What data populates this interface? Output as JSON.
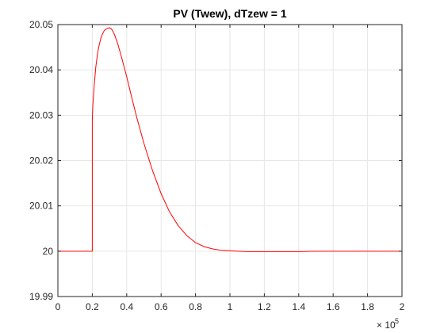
{
  "chart_data": {
    "type": "line",
    "title": "PV (Twew), dTzew = 1",
    "xlabel": "",
    "ylabel": "",
    "xlim": [
      0,
      2
    ],
    "ylim": [
      19.99,
      20.05
    ],
    "x_exponent_label": "× 10",
    "x_exponent_power": "5",
    "xticks": [
      "0",
      "0.2",
      "0.4",
      "0.6",
      "0.8",
      "1",
      "1.2",
      "1.4",
      "1.6",
      "1.8",
      "2"
    ],
    "yticks": [
      "19.99",
      "20",
      "20.01",
      "20.02",
      "20.03",
      "20.04",
      "20.05"
    ],
    "grid": true,
    "legend": "none",
    "series": [
      {
        "color": "#ff0000",
        "x": [
          0,
          0.2,
          0.2,
          0.203,
          0.21,
          0.22,
          0.23,
          0.24,
          0.25,
          0.26,
          0.27,
          0.28,
          0.29,
          0.3,
          0.31,
          0.32,
          0.33,
          0.35,
          0.37,
          0.4,
          0.43,
          0.46,
          0.5,
          0.55,
          0.6,
          0.65,
          0.7,
          0.75,
          0.8,
          0.85,
          0.9,
          0.95,
          1.0,
          1.05,
          1.1,
          1.15,
          1.2,
          1.3,
          1.4,
          1.5,
          1.6,
          1.7,
          1.8,
          1.9,
          2.0
        ],
        "y": [
          20,
          20,
          20.029,
          20.032,
          20.036,
          20.0405,
          20.0435,
          20.0455,
          20.047,
          20.048,
          20.0487,
          20.049,
          20.0492,
          20.0493,
          20.0491,
          20.0485,
          20.0477,
          20.0455,
          20.0428,
          20.0385,
          20.0338,
          20.0293,
          20.0238,
          20.0178,
          20.0127,
          20.0086,
          20.0056,
          20.0034,
          20.0019,
          20.001,
          20.0005,
          20.0002,
          20.0001,
          20.0,
          19.9999,
          19.9999,
          19.9999,
          19.9999,
          19.9999,
          20.0,
          20.0,
          20.0,
          20.0,
          20.0,
          20.0
        ]
      }
    ]
  }
}
